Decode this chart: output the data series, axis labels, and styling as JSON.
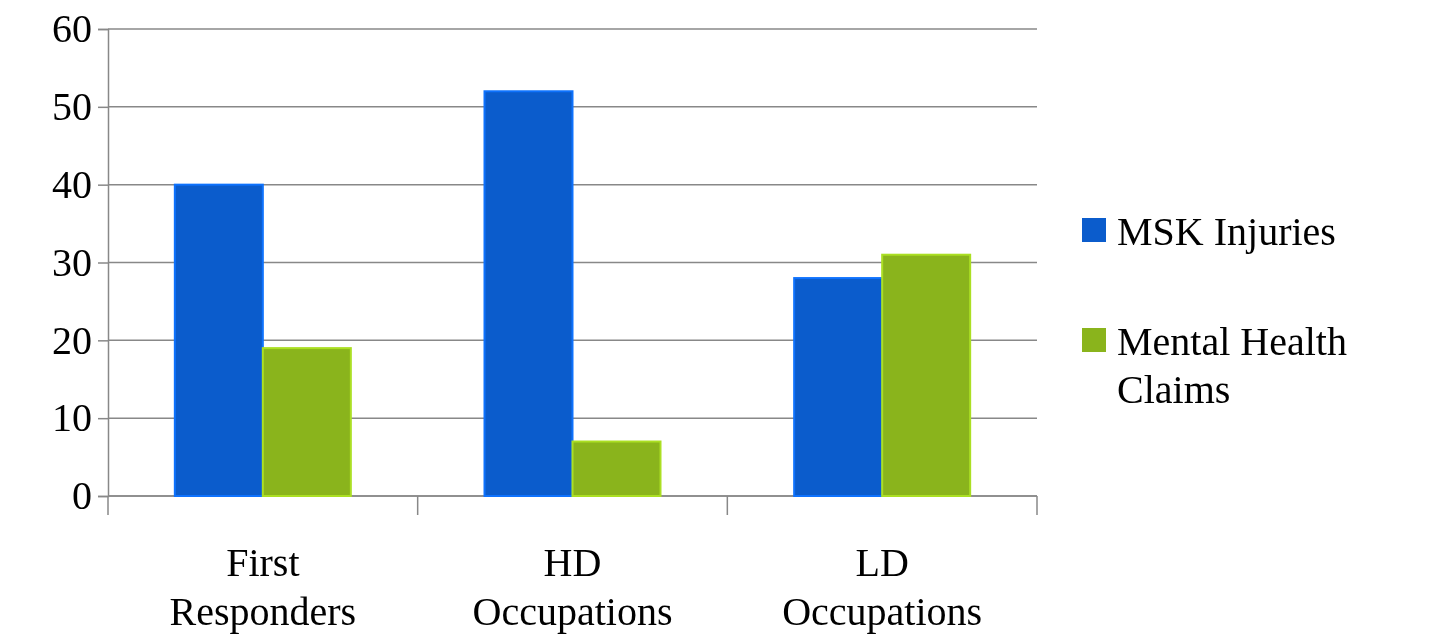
{
  "chart_data": {
    "type": "bar",
    "categories": [
      "First Responders",
      "HD Occupations",
      "LD Occupations"
    ],
    "series": [
      {
        "name": "MSK Injuries",
        "color": "#0b5ccc",
        "values": [
          40,
          52,
          28
        ]
      },
      {
        "name": "Mental Health Claims",
        "color": "#8ab41c",
        "values": [
          19,
          7,
          31
        ]
      }
    ],
    "ylim": [
      0,
      60
    ],
    "yticks": [
      0,
      10,
      20,
      30,
      40,
      50,
      60
    ],
    "grid": "y",
    "legend": "right"
  }
}
